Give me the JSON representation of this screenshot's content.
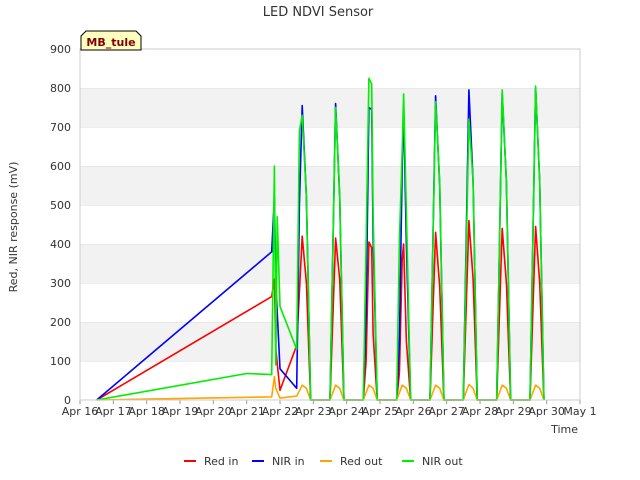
{
  "chart_data": {
    "type": "line",
    "title": "LED NDVI Sensor",
    "xlabel": "Time",
    "ylabel": "Red, NIR response (mV)",
    "ylim": [
      0,
      900
    ],
    "xlim": [
      "Apr 16",
      "May 1"
    ],
    "yticks": [
      0,
      100,
      200,
      300,
      400,
      500,
      600,
      700,
      800,
      900
    ],
    "xticks": [
      "Apr 16",
      "Apr 17",
      "Apr 18",
      "Apr 19",
      "Apr 20",
      "Apr 21",
      "Apr 22",
      "Apr 23",
      "Apr 24",
      "Apr 25",
      "Apr 26",
      "Apr 27",
      "Apr 28",
      "Apr 29",
      "Apr 30",
      "May 1"
    ],
    "grid": "horizontal bands",
    "legend": "bottom",
    "annotation": "MB_tule",
    "series": [
      {
        "name": "Red in",
        "color": "#ff0000",
        "points": [
          [
            "Apr 16 12:00",
            0
          ],
          [
            "Apr 21 18:00",
            265
          ],
          [
            "Apr 21 20:00",
            310
          ],
          [
            "Apr 21 21:00",
            130
          ],
          [
            "Apr 22 00:00",
            25
          ],
          [
            "Apr 22 12:00",
            140
          ],
          [
            "Apr 22 16:00",
            420
          ],
          [
            "Apr 22 19:00",
            300
          ],
          [
            "Apr 22 22:00",
            0
          ],
          [
            "Apr 23 12:00",
            0
          ],
          [
            "Apr 23 16:00",
            415
          ],
          [
            "Apr 23 19:00",
            310
          ],
          [
            "Apr 23 22:00",
            0
          ],
          [
            "Apr 24 12:00",
            0
          ],
          [
            "Apr 24 14:00",
            100
          ],
          [
            "Apr 24 16:00",
            405
          ],
          [
            "Apr 24 18:00",
            390
          ],
          [
            "Apr 24 19:00",
            170
          ],
          [
            "Apr 24 22:00",
            0
          ],
          [
            "Apr 25 12:00",
            0
          ],
          [
            "Apr 25 14:00",
            70
          ],
          [
            "Apr 25 16:00",
            360
          ],
          [
            "Apr 25 17:00",
            400
          ],
          [
            "Apr 25 19:00",
            150
          ],
          [
            "Apr 25 22:00",
            0
          ],
          [
            "Apr 26 12:00",
            0
          ],
          [
            "Apr 26 16:00",
            430
          ],
          [
            "Apr 26 19:00",
            290
          ],
          [
            "Apr 26 22:00",
            0
          ],
          [
            "Apr 27 12:00",
            0
          ],
          [
            "Apr 27 16:00",
            460
          ],
          [
            "Apr 27 19:00",
            310
          ],
          [
            "Apr 27 22:00",
            0
          ],
          [
            "Apr 28 12:00",
            0
          ],
          [
            "Apr 28 16:00",
            440
          ],
          [
            "Apr 28 19:00",
            300
          ],
          [
            "Apr 28 22:00",
            0
          ],
          [
            "Apr 29 12:00",
            0
          ],
          [
            "Apr 29 16:00",
            445
          ],
          [
            "Apr 29 19:00",
            300
          ],
          [
            "Apr 29 22:00",
            0
          ]
        ]
      },
      {
        "name": "NIR in",
        "color": "#0000ff",
        "points": [
          [
            "Apr 16 12:00",
            0
          ],
          [
            "Apr 21 18:00",
            380
          ],
          [
            "Apr 21 20:00",
            520
          ],
          [
            "Apr 21 21:00",
            300
          ],
          [
            "Apr 22 00:00",
            80
          ],
          [
            "Apr 22 12:00",
            30
          ],
          [
            "Apr 22 14:00",
            500
          ],
          [
            "Apr 22 16:00",
            755
          ],
          [
            "Apr 22 19:00",
            520
          ],
          [
            "Apr 22 22:00",
            0
          ],
          [
            "Apr 23 12:00",
            0
          ],
          [
            "Apr 23 16:00",
            760
          ],
          [
            "Apr 23 19:00",
            520
          ],
          [
            "Apr 23 22:00",
            0
          ],
          [
            "Apr 24 12:00",
            0
          ],
          [
            "Apr 24 14:00",
            220
          ],
          [
            "Apr 24 16:00",
            750
          ],
          [
            "Apr 24 18:00",
            745
          ],
          [
            "Apr 24 19:00",
            420
          ],
          [
            "Apr 24 22:00",
            0
          ],
          [
            "Apr 25 12:00",
            0
          ],
          [
            "Apr 25 14:00",
            150
          ],
          [
            "Apr 25 16:00",
            600
          ],
          [
            "Apr 25 17:00",
            750
          ],
          [
            "Apr 25 19:00",
            400
          ],
          [
            "Apr 25 22:00",
            0
          ],
          [
            "Apr 26 12:00",
            0
          ],
          [
            "Apr 26 16:00",
            780
          ],
          [
            "Apr 26 19:00",
            550
          ],
          [
            "Apr 26 22:00",
            0
          ],
          [
            "Apr 27 12:00",
            0
          ],
          [
            "Apr 27 16:00",
            795
          ],
          [
            "Apr 27 19:00",
            560
          ],
          [
            "Apr 27 22:00",
            0
          ],
          [
            "Apr 28 12:00",
            0
          ],
          [
            "Apr 28 16:00",
            785
          ],
          [
            "Apr 28 19:00",
            560
          ],
          [
            "Apr 28 22:00",
            0
          ],
          [
            "Apr 29 12:00",
            0
          ],
          [
            "Apr 29 16:00",
            800
          ],
          [
            "Apr 29 19:00",
            560
          ],
          [
            "Apr 29 22:00",
            0
          ]
        ]
      },
      {
        "name": "Red out",
        "color": "#ffa500",
        "points": [
          [
            "Apr 16 12:00",
            0
          ],
          [
            "Apr 21 18:00",
            8
          ],
          [
            "Apr 21 20:00",
            60
          ],
          [
            "Apr 21 21:00",
            30
          ],
          [
            "Apr 22 00:00",
            5
          ],
          [
            "Apr 22 12:00",
            10
          ],
          [
            "Apr 22 16:00",
            38
          ],
          [
            "Apr 22 19:00",
            30
          ],
          [
            "Apr 22 22:00",
            0
          ],
          [
            "Apr 23 12:00",
            0
          ],
          [
            "Apr 23 16:00",
            38
          ],
          [
            "Apr 23 19:00",
            30
          ],
          [
            "Apr 23 22:00",
            0
          ],
          [
            "Apr 24 12:00",
            0
          ],
          [
            "Apr 24 16:00",
            38
          ],
          [
            "Apr 24 19:00",
            30
          ],
          [
            "Apr 24 22:00",
            0
          ],
          [
            "Apr 25 12:00",
            0
          ],
          [
            "Apr 25 16:00",
            38
          ],
          [
            "Apr 25 19:00",
            30
          ],
          [
            "Apr 25 22:00",
            0
          ],
          [
            "Apr 26 12:00",
            0
          ],
          [
            "Apr 26 16:00",
            38
          ],
          [
            "Apr 26 19:00",
            30
          ],
          [
            "Apr 26 22:00",
            0
          ],
          [
            "Apr 27 12:00",
            0
          ],
          [
            "Apr 27 16:00",
            40
          ],
          [
            "Apr 27 19:00",
            30
          ],
          [
            "Apr 27 22:00",
            0
          ],
          [
            "Apr 28 12:00",
            0
          ],
          [
            "Apr 28 16:00",
            38
          ],
          [
            "Apr 28 19:00",
            30
          ],
          [
            "Apr 28 22:00",
            0
          ],
          [
            "Apr 29 12:00",
            0
          ],
          [
            "Apr 29 16:00",
            38
          ],
          [
            "Apr 29 19:00",
            30
          ],
          [
            "Apr 29 22:00",
            0
          ]
        ]
      },
      {
        "name": "NIR out",
        "color": "#00ee00",
        "points": [
          [
            "Apr 16 12:00",
            0
          ],
          [
            "Apr 21 00:00",
            68
          ],
          [
            "Apr 21 18:00",
            65
          ],
          [
            "Apr 21 20:00",
            600
          ],
          [
            "Apr 21 21:00",
            90
          ],
          [
            "Apr 21 22:00",
            470
          ],
          [
            "Apr 22 00:00",
            240
          ],
          [
            "Apr 22 12:00",
            130
          ],
          [
            "Apr 22 14:00",
            690
          ],
          [
            "Apr 22 16:00",
            730
          ],
          [
            "Apr 22 19:00",
            520
          ],
          [
            "Apr 22 22:00",
            0
          ],
          [
            "Apr 23 12:00",
            0
          ],
          [
            "Apr 23 16:00",
            750
          ],
          [
            "Apr 23 19:00",
            530
          ],
          [
            "Apr 23 22:00",
            0
          ],
          [
            "Apr 24 12:00",
            0
          ],
          [
            "Apr 24 14:00",
            400
          ],
          [
            "Apr 24 16:00",
            825
          ],
          [
            "Apr 24 18:00",
            810
          ],
          [
            "Apr 24 19:00",
            480
          ],
          [
            "Apr 24 22:00",
            0
          ],
          [
            "Apr 25 12:00",
            0
          ],
          [
            "Apr 25 14:00",
            410
          ],
          [
            "Apr 25 16:00",
            640
          ],
          [
            "Apr 25 17:00",
            785
          ],
          [
            "Apr 25 19:00",
            480
          ],
          [
            "Apr 25 22:00",
            0
          ],
          [
            "Apr 26 12:00",
            0
          ],
          [
            "Apr 26 16:00",
            765
          ],
          [
            "Apr 26 19:00",
            560
          ],
          [
            "Apr 26 22:00",
            0
          ],
          [
            "Apr 27 12:00",
            0
          ],
          [
            "Apr 27 16:00",
            720
          ],
          [
            "Apr 27 19:00",
            560
          ],
          [
            "Apr 27 22:00",
            0
          ],
          [
            "Apr 28 12:00",
            0
          ],
          [
            "Apr 28 16:00",
            795
          ],
          [
            "Apr 28 19:00",
            560
          ],
          [
            "Apr 28 22:00",
            0
          ],
          [
            "Apr 29 12:00",
            0
          ],
          [
            "Apr 29 16:00",
            805
          ],
          [
            "Apr 29 19:00",
            560
          ],
          [
            "Apr 29 22:00",
            0
          ]
        ]
      }
    ]
  }
}
